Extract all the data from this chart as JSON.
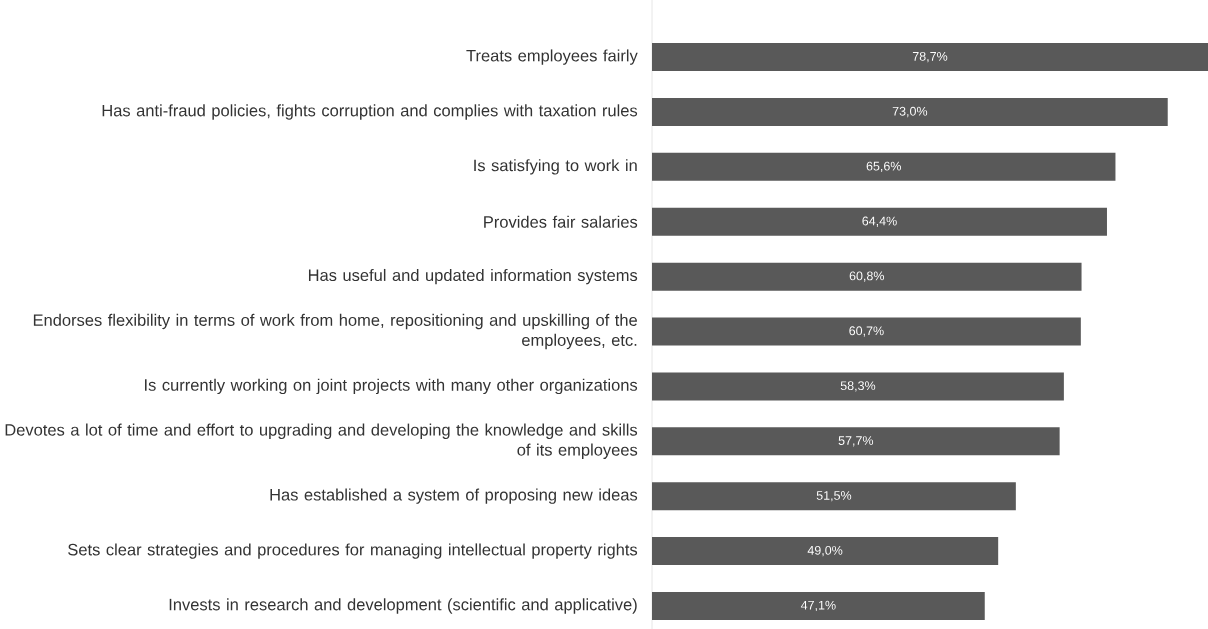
{
  "chart_data": {
    "type": "bar",
    "orientation": "horizontal",
    "color": "#595959",
    "categories": [
      "Treats employees fairly",
      "Has anti-fraud policies, fights corruption and complies with taxation rules",
      "Is satisfying to work in",
      "Provides fair salaries",
      "Has useful and updated information systems",
      "Endorses flexibility in terms of work from home, repositioning and upskilling of the employees, etc.",
      "Is currently working on joint projects with many other organizations",
      "Devotes a lot of time and effort to upgrading and developing the knowledge and skills of its employees",
      "Has established a system of proposing new ideas",
      "Sets clear strategies and procedures for managing intellectual property rights",
      "Invests in research and development (scientific and applicative)"
    ],
    "values": [
      78.7,
      73.0,
      65.6,
      64.4,
      60.8,
      60.7,
      58.3,
      57.7,
      51.5,
      49.0,
      47.1
    ],
    "value_labels": [
      "78,7%",
      "73,0%",
      "65,6%",
      "64,4%",
      "60,8%",
      "60,7%",
      "58,3%",
      "57,7%",
      "51,5%",
      "49,0%",
      "47,1%"
    ]
  }
}
